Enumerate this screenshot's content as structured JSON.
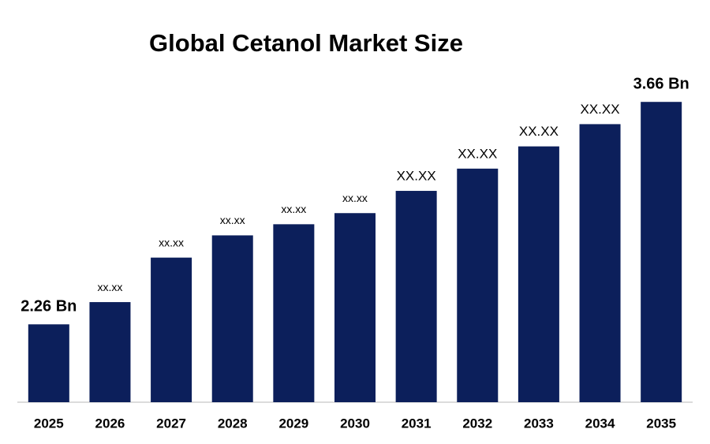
{
  "chart_data": {
    "type": "bar",
    "title": "Global Cetanol Market Size",
    "categories": [
      "2025",
      "2026",
      "2027",
      "2028",
      "2029",
      "2030",
      "2031",
      "2032",
      "2033",
      "2034",
      "2035"
    ],
    "values": [
      2.26,
      2.4,
      2.68,
      2.82,
      2.89,
      2.96,
      3.1,
      3.24,
      3.38,
      3.52,
      3.66
    ],
    "value_labels": [
      "2.26 Bn",
      "xx.xx",
      "xx.xx",
      "xx.xx",
      "xx.xx",
      "xx.xx",
      "XX.XX",
      "XX.XX",
      "XX.XX",
      "XX.XX",
      "3.66 Bn"
    ],
    "color": "#0c1f5b",
    "ylim": [
      1.77,
      3.8
    ]
  }
}
